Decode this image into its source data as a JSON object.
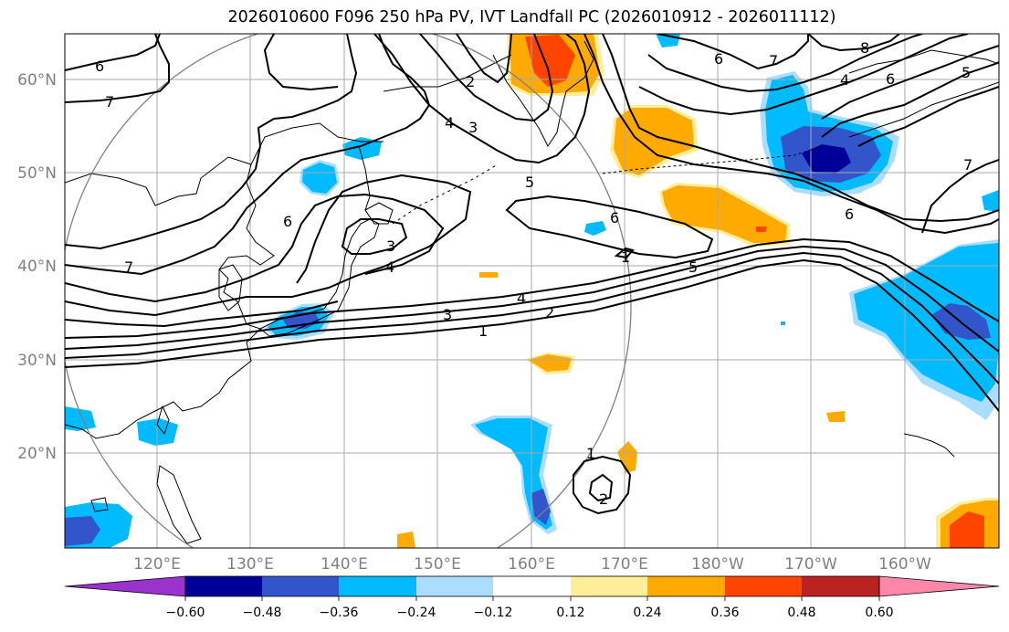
{
  "title": "2026010600 F096 250 hPa PV, IVT Landfall PC (2026010912 - 2026011112)",
  "axes": {
    "lat_labels": [
      "20°N",
      "30°N",
      "40°N",
      "50°N",
      "60°N"
    ],
    "lon_labels": [
      "120°E",
      "130°E",
      "140°E",
      "150°E",
      "160°E",
      "170°E",
      "180°W",
      "170°W",
      "160°W"
    ]
  },
  "colorbar": {
    "colors": [
      "#9933cc",
      "#000099",
      "#3355cc",
      "#00bbff",
      "#aaddff",
      "#ffffff",
      "#ffee99",
      "#ffaa00",
      "#ff4400",
      "#bb2222",
      "#ff88aa"
    ],
    "ticks": [
      "−0.60",
      "−0.48",
      "−0.36",
      "−0.24",
      "−0.12",
      "0.12",
      "0.24",
      "0.36",
      "0.48",
      "0.60"
    ]
  },
  "contour_labels": [
    "6",
    "7",
    "2",
    "3",
    "4",
    "5",
    "6",
    "7",
    "6",
    "8",
    "4",
    "6",
    "5",
    "6",
    "7",
    "6",
    "3",
    "4",
    "3",
    "4",
    "2",
    "1",
    "5",
    "1",
    "1",
    "2",
    "7"
  ],
  "colors": {
    "shade_light_blue": "#aaddff",
    "shade_blue": "#00bbff",
    "shade_mid_blue": "#3355cc",
    "shade_dark_blue": "#000099",
    "shade_yellow": "#ffee99",
    "shade_orange": "#ffaa00",
    "shade_red_orange": "#ff4400",
    "grid": "#aaaaaa",
    "circle": "#808080"
  }
}
